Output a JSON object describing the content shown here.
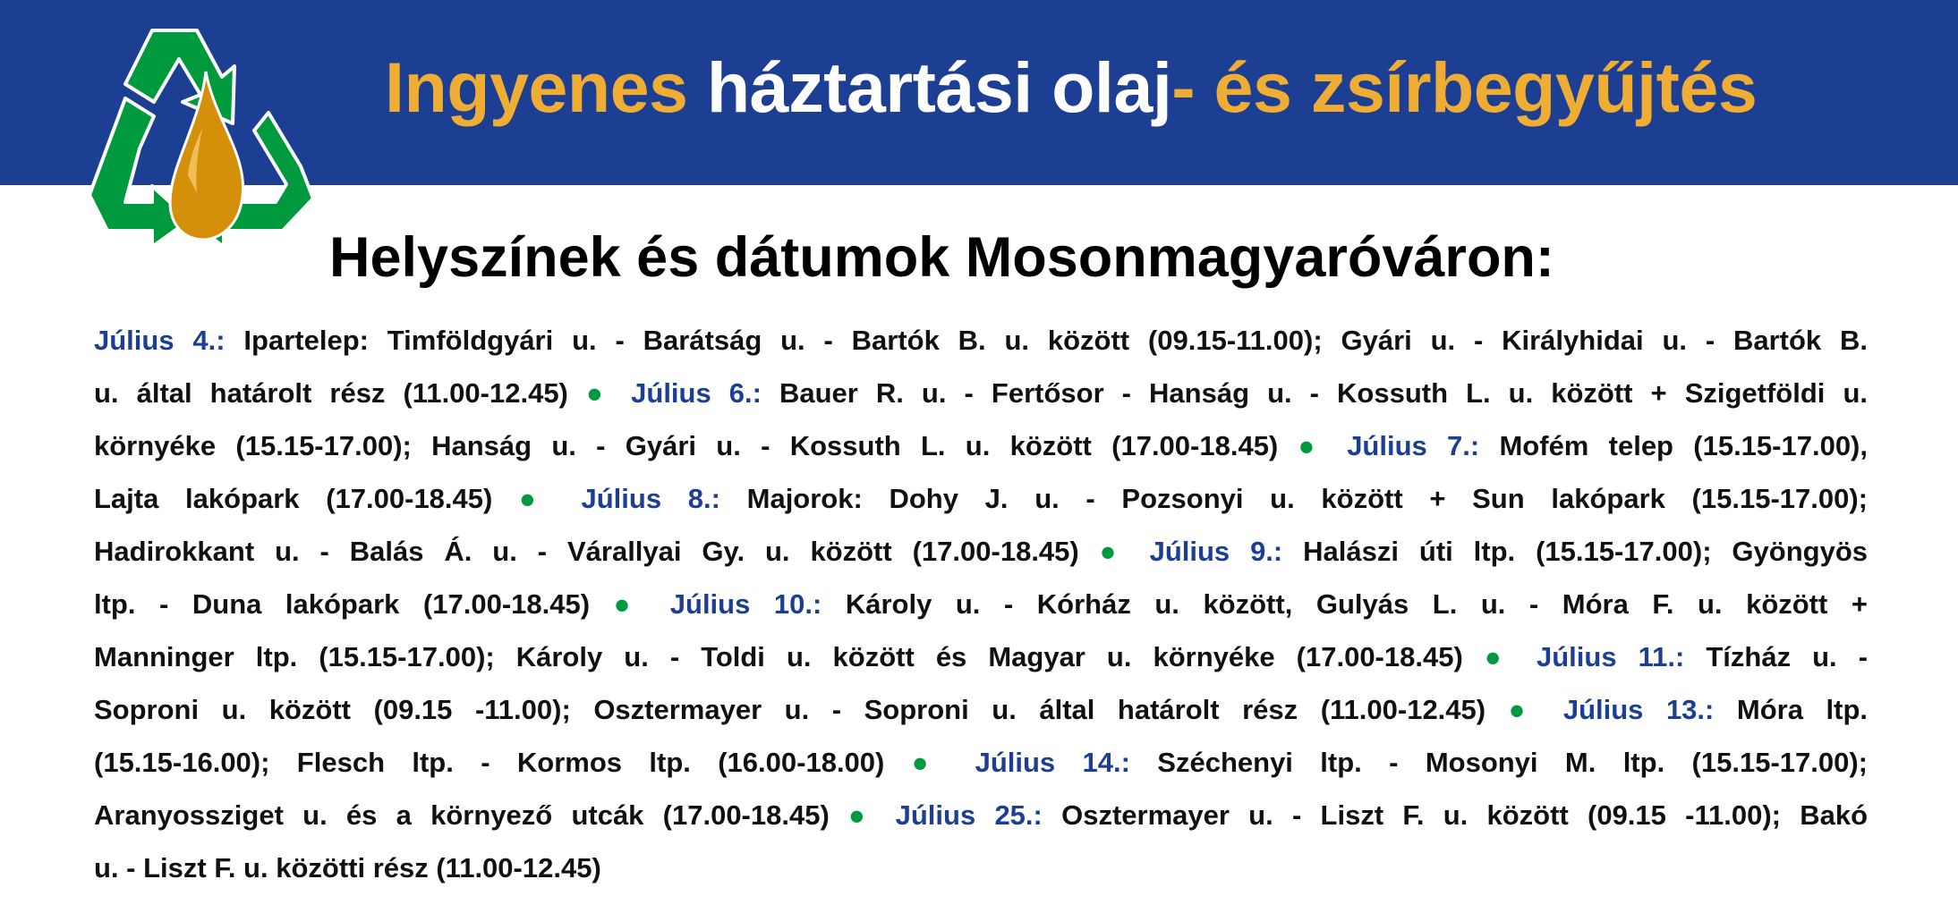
{
  "header": {
    "title_parts": [
      {
        "text": "Ingyenes ",
        "color": "yellow"
      },
      {
        "text": "háztartási olaj",
        "color": "white"
      },
      {
        "text": "- és zsírbegyűjtés",
        "color": "yellow"
      }
    ],
    "logo": "recycle-oil-drop-icon"
  },
  "subtitle": "Helyszínek és dátumok Mosonmagyaróváron:",
  "colors": {
    "band": "#1c3f94",
    "yellow": "#f0ad33",
    "date": "#1c3f94",
    "bullet": "#009a3e",
    "drop": "#d4900a",
    "arrows": "#009a3e"
  },
  "schedule_lines": [
    [
      [
        "date",
        "Július 4.:"
      ],
      [
        "text",
        " Ipartelep: Timföldgyári u. - Barátság u. - Bartók B. u. között (09.15-11.00); Gyári u. - Királyhidai u. - Bartók B."
      ]
    ],
    [
      [
        "text",
        "u. által határolt rész (11.00-12.45) "
      ],
      [
        "bullet",
        "●"
      ],
      [
        "date",
        " Július 6.:"
      ],
      [
        "text",
        " Bauer R. u. - Fertősor - Hanság u. - Kossuth L. u. között + Szigetföldi u."
      ]
    ],
    [
      [
        "text",
        "környéke (15.15-17.00); Hanság u. - Gyári u. - Kossuth L. u. között (17.00-18.45) "
      ],
      [
        "bullet",
        "●"
      ],
      [
        "date",
        " Július 7.:"
      ],
      [
        "text",
        " Mofém telep (15.15-17.00),"
      ]
    ],
    [
      [
        "text",
        "Lajta lakópark (17.00-18.45) "
      ],
      [
        "bullet",
        "●"
      ],
      [
        "date",
        " Július 8.:"
      ],
      [
        "text",
        " Majorok: Dohy J. u. - Pozsonyi u. között + Sun lakópark (15.15-17.00);"
      ]
    ],
    [
      [
        "text",
        "Hadirokkant u. - Balás Á. u. - Várallyai Gy. u. között (17.00-18.45) "
      ],
      [
        "bullet",
        "●"
      ],
      [
        "date",
        " Július 9.:"
      ],
      [
        "text",
        " Halászi úti ltp. (15.15-17.00); Gyöngyös"
      ]
    ],
    [
      [
        "text",
        "ltp. - Duna lakópark (17.00-18.45) "
      ],
      [
        "bullet",
        "●"
      ],
      [
        "date",
        " Július 10.:"
      ],
      [
        "text",
        " Károly u. - Kórház u. között, Gulyás L. u. - Móra F. u. között +"
      ]
    ],
    [
      [
        "text",
        "Manninger ltp. (15.15-17.00); Károly u. - Toldi u. között és Magyar u. környéke (17.00-18.45) "
      ],
      [
        "bullet",
        "●"
      ],
      [
        "date",
        " Július 11.:"
      ],
      [
        "text",
        " Tízház u. -"
      ]
    ],
    [
      [
        "text",
        "Soproni u. között (09.15 -11.00); Osztermayer u. - Soproni u. által határolt rész (11.00-12.45) "
      ],
      [
        "bullet",
        "●"
      ],
      [
        "date",
        " Július 13.:"
      ],
      [
        "text",
        " Móra ltp."
      ]
    ],
    [
      [
        "text",
        "(15.15-16.00); Flesch ltp. - Kormos ltp. (16.00-18.00) "
      ],
      [
        "bullet",
        "●"
      ],
      [
        "date",
        " Július 14.:"
      ],
      [
        "text",
        " Széchenyi ltp. - Mosonyi M. ltp. (15.15-17.00);"
      ]
    ],
    [
      [
        "text",
        "Aranyossziget u. és a környező utcák (17.00-18.45) "
      ],
      [
        "bullet",
        "●"
      ],
      [
        "date",
        " Július 25.:"
      ],
      [
        "text",
        " Osztermayer u. - Liszt F. u. között (09.15 -11.00); Bakó"
      ]
    ],
    [
      [
        "text",
        "u. - Liszt F. u. közötti rész (11.00-12.45)"
      ]
    ]
  ]
}
